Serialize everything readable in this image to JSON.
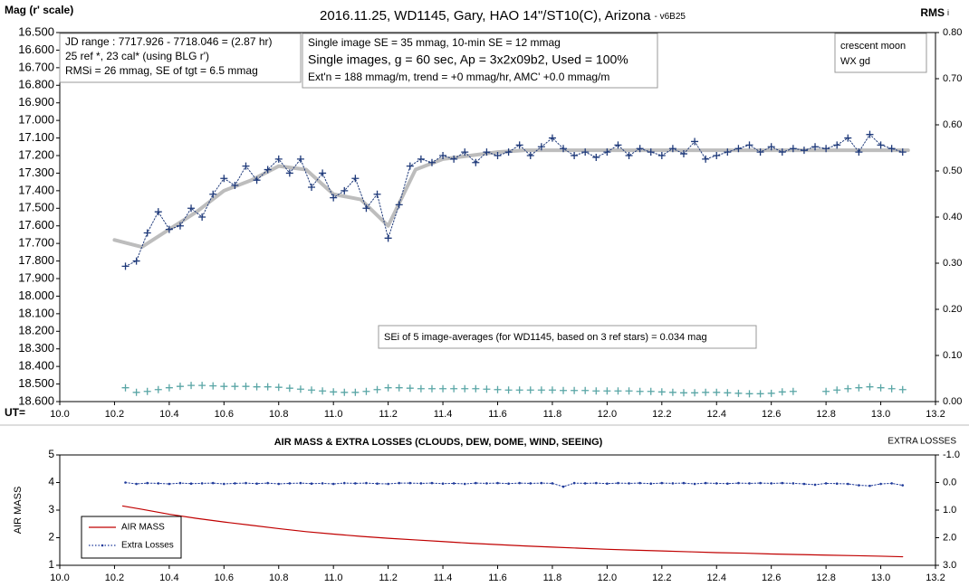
{
  "chart_data": [
    {
      "type": "line",
      "title": "2016.11.25,  WD1145, Gary, HAO  14\"/ST10(C), Arizona",
      "title_suffix": "- v6B25",
      "ylabel": "Mag (r' scale)",
      "y2label": "RMS",
      "y2label_suffix": "i",
      "xlabel": "UT=",
      "xlim": [
        10.0,
        13.2
      ],
      "xticks": [
        {
          "value": 10,
          "label": "10.0"
        },
        10.2,
        10.4,
        10.6,
        10.8,
        {
          "value": 11,
          "label": "11.0"
        },
        11.2,
        11.4,
        11.6,
        11.8,
        {
          "value": 12,
          "label": "12.0"
        },
        12.2,
        12.4,
        12.6,
        12.8,
        {
          "value": 13,
          "label": "13.0"
        },
        13.2
      ],
      "ylim": [
        18.6,
        16.5
      ],
      "yticks": [
        {
          "value": 16.5,
          "label": "16.500"
        },
        {
          "value": 16.6,
          "label": "16.600"
        },
        {
          "value": 16.7,
          "label": "16.700"
        },
        {
          "value": 16.8,
          "label": "16.800"
        },
        {
          "value": 16.9,
          "label": "16.900"
        },
        {
          "value": 17.0,
          "label": "17.000"
        },
        {
          "value": 17.1,
          "label": "17.100"
        },
        {
          "value": 17.2,
          "label": "17.200"
        },
        {
          "value": 17.3,
          "label": "17.300"
        },
        {
          "value": 17.4,
          "label": "17.400"
        },
        {
          "value": 17.5,
          "label": "17.500"
        },
        {
          "value": 17.6,
          "label": "17.600"
        },
        {
          "value": 17.7,
          "label": "17.700"
        },
        {
          "value": 17.8,
          "label": "17.800"
        },
        {
          "value": 17.9,
          "label": "17.900"
        },
        {
          "value": 18.0,
          "label": "18.000"
        },
        {
          "value": 18.1,
          "label": "18.100"
        },
        {
          "value": 18.2,
          "label": "18.200"
        },
        {
          "value": 18.3,
          "label": "18.300"
        },
        {
          "value": 18.4,
          "label": "18.400"
        },
        {
          "value": 18.5,
          "label": "18.500"
        },
        {
          "value": 18.6,
          "label": "18.600"
        }
      ],
      "y2lim": [
        0,
        0.8
      ],
      "y2ticks": [
        {
          "value": 0,
          "label": "0.00"
        },
        {
          "value": 0.1,
          "label": "0.10"
        },
        {
          "value": 0.2,
          "label": "0.20"
        },
        {
          "value": 0.3,
          "label": "0.30"
        },
        {
          "value": 0.4,
          "label": "0.40"
        },
        {
          "value": 0.5,
          "label": "0.50"
        },
        {
          "value": 0.6,
          "label": "0.60"
        },
        {
          "value": 0.7,
          "label": "0.70"
        },
        {
          "value": 0.8,
          "label": "0.80"
        }
      ],
      "grid": false,
      "annotations": [
        {
          "lines": [
            "JD range : 7717.926 - 7718.046  = (2.87 hr)",
            "25 ref *, 23 cal* (using BLG r')",
            "RMSi = 26 mmag, SE of tgt = 6.5 mmag"
          ]
        },
        {
          "lines": [
            "Single image SE = 35 mmag, 10-min SE = 12 mmag",
            "Single images, g = 60 sec, Ap = 3x2x09b2, Used = 100%",
            "Ext'n = 188  mmag/m, trend = +0 mmag/hr, AMC' +0.0 mmag/m"
          ]
        },
        {
          "lines": [
            "crescent moon",
            "WX gd"
          ]
        },
        {
          "lines": [
            "SEi of 5 image-averages (for WD1145, based on 3 ref stars) = 0.034 mag"
          ]
        }
      ],
      "series": [
        {
          "color": "#bdbdbd",
          "marker": "none",
          "line": "solid",
          "x": [
            10.2,
            10.3,
            10.4,
            10.5,
            10.6,
            10.7,
            10.8,
            10.9,
            11.0,
            11.1,
            11.2,
            11.3,
            11.4,
            11.5,
            11.6,
            11.7,
            11.8,
            11.9,
            12.0,
            12.1,
            12.2,
            12.3,
            12.4,
            12.5,
            12.6,
            12.7,
            12.8,
            12.9,
            13.0,
            13.1
          ],
          "values": [
            17.68,
            17.72,
            17.62,
            17.52,
            17.4,
            17.34,
            17.26,
            17.28,
            17.42,
            17.45,
            17.6,
            17.28,
            17.22,
            17.2,
            17.18,
            17.17,
            17.17,
            17.17,
            17.17,
            17.17,
            17.17,
            17.17,
            17.17,
            17.17,
            17.17,
            17.17,
            17.17,
            17.17,
            17.17,
            17.17
          ]
        },
        {
          "color": "#1f3a7a",
          "marker": "plus",
          "line": "dotted",
          "x": [
            10.24,
            10.28,
            10.32,
            10.36,
            10.4,
            10.44,
            10.48,
            10.52,
            10.56,
            10.6,
            10.64,
            10.68,
            10.72,
            10.76,
            10.8,
            10.84,
            10.88,
            10.92,
            10.96,
            11.0,
            11.04,
            11.08,
            11.12,
            11.16,
            11.2,
            11.24,
            11.28,
            11.32,
            11.36,
            11.4,
            11.44,
            11.48,
            11.52,
            11.56,
            11.6,
            11.64,
            11.68,
            11.72,
            11.76,
            11.8,
            11.84,
            11.88,
            11.92,
            11.96,
            12.0,
            12.04,
            12.08,
            12.12,
            12.16,
            12.2,
            12.24,
            12.28,
            12.32,
            12.36,
            12.4,
            12.44,
            12.48,
            12.52,
            12.56,
            12.6,
            12.64,
            12.68,
            12.72,
            12.76,
            12.8,
            12.84,
            12.88,
            12.92,
            12.96,
            13.0,
            13.04,
            13.08
          ],
          "values": [
            17.83,
            17.8,
            17.64,
            17.52,
            17.62,
            17.6,
            17.5,
            17.55,
            17.42,
            17.33,
            17.37,
            17.26,
            17.34,
            17.28,
            17.22,
            17.3,
            17.22,
            17.38,
            17.3,
            17.44,
            17.4,
            17.33,
            17.5,
            17.42,
            17.67,
            17.48,
            17.26,
            17.22,
            17.24,
            17.2,
            17.22,
            17.18,
            17.24,
            17.18,
            17.2,
            17.18,
            17.14,
            17.2,
            17.15,
            17.1,
            17.16,
            17.2,
            17.18,
            17.21,
            17.18,
            17.14,
            17.2,
            17.16,
            17.18,
            17.2,
            17.16,
            17.19,
            17.12,
            17.22,
            17.2,
            17.18,
            17.16,
            17.14,
            17.18,
            17.15,
            17.18,
            17.16,
            17.17,
            17.15,
            17.16,
            17.14,
            17.1,
            17.18,
            17.08,
            17.14,
            17.16,
            17.18
          ]
        },
        {
          "color": "#5aa6a6",
          "marker": "plus",
          "line": "none",
          "axis": "y2",
          "x": [
            10.24,
            10.28,
            10.32,
            10.36,
            10.4,
            10.44,
            10.48,
            10.52,
            10.56,
            10.6,
            10.64,
            10.68,
            10.72,
            10.76,
            10.8,
            10.84,
            10.88,
            10.92,
            10.96,
            11.0,
            11.04,
            11.08,
            11.12,
            11.16,
            11.2,
            11.24,
            11.28,
            11.32,
            11.36,
            11.4,
            11.44,
            11.48,
            11.52,
            11.56,
            11.6,
            11.64,
            11.68,
            11.72,
            11.76,
            11.8,
            11.84,
            11.88,
            11.92,
            11.96,
            12.0,
            12.04,
            12.08,
            12.12,
            12.16,
            12.2,
            12.24,
            12.28,
            12.32,
            12.36,
            12.4,
            12.44,
            12.48,
            12.52,
            12.56,
            12.6,
            12.64,
            12.68,
            12.72,
            12.76,
            12.8,
            12.84,
            12.88,
            12.92,
            12.96,
            13.0,
            13.04,
            13.08
          ],
          "values": [
            0.03,
            0.02,
            0.022,
            0.026,
            0.03,
            0.033,
            0.035,
            0.035,
            0.034,
            0.033,
            0.033,
            0.033,
            0.032,
            0.032,
            0.031,
            0.029,
            0.027,
            0.025,
            0.023,
            0.021,
            0.02,
            0.02,
            0.022,
            0.026,
            0.03,
            0.03,
            0.029,
            0.028,
            0.028,
            0.028,
            0.028,
            0.028,
            0.028,
            0.027,
            0.026,
            0.025,
            0.025,
            0.025,
            0.025,
            0.025,
            0.024,
            0.024,
            0.024,
            0.023,
            0.023,
            0.023,
            0.023,
            0.022,
            0.022,
            0.021,
            0.02,
            0.019,
            0.019,
            0.02,
            0.02,
            0.019,
            0.018,
            0.017,
            0.017,
            0.018,
            0.021,
            0.022,
            null,
            null,
            0.022,
            0.025,
            0.028,
            0.03,
            0.032,
            0.03,
            0.028,
            0.026
          ]
        }
      ]
    },
    {
      "type": "line",
      "title": "AIR MASS & EXTRA LOSSES (CLOUDS, DEW, DOME, WIND, SEEING)",
      "ylabel": "AIR MASS",
      "y2label": "EXTRA LOSSES",
      "xlim": [
        10.0,
        13.2
      ],
      "xticks": [
        {
          "value": 10,
          "label": "10.0"
        },
        10.2,
        10.4,
        10.6,
        10.8,
        {
          "value": 11,
          "label": "11.0"
        },
        11.2,
        11.4,
        11.6,
        11.8,
        {
          "value": 12,
          "label": "12.0"
        },
        12.2,
        12.4,
        12.6,
        12.8,
        {
          "value": 13,
          "label": "13.0"
        },
        13.2
      ],
      "ylim": [
        1,
        5
      ],
      "yticks": [
        1,
        2,
        3,
        4,
        5
      ],
      "y2lim": [
        3,
        -1
      ],
      "y2ticks": [
        {
          "value": -1,
          "label": "-1.0"
        },
        {
          "value": 0,
          "label": "0.0"
        },
        {
          "value": 1,
          "label": "1.0"
        },
        {
          "value": 2,
          "label": "2.0"
        },
        {
          "value": 3,
          "label": "3.0"
        }
      ],
      "grid": false,
      "legend": "lower left",
      "series": [
        {
          "name": "AIR MASS",
          "color": "#c00000",
          "marker": "none",
          "line": "solid",
          "x": [
            10.23,
            10.3,
            10.4,
            10.5,
            10.6,
            10.7,
            10.8,
            10.9,
            11.0,
            11.1,
            11.2,
            11.3,
            11.4,
            11.5,
            11.6,
            11.7,
            11.8,
            11.9,
            12.0,
            12.1,
            12.2,
            12.3,
            12.4,
            12.5,
            12.6,
            12.7,
            12.8,
            12.9,
            13.0,
            13.08
          ],
          "values": [
            3.15,
            3.03,
            2.85,
            2.7,
            2.57,
            2.45,
            2.33,
            2.22,
            2.13,
            2.05,
            1.98,
            1.92,
            1.86,
            1.8,
            1.75,
            1.7,
            1.66,
            1.62,
            1.58,
            1.55,
            1.52,
            1.49,
            1.46,
            1.44,
            1.41,
            1.39,
            1.37,
            1.35,
            1.33,
            1.31
          ]
        },
        {
          "name": "Extra Losses",
          "color": "#1f3a9a",
          "marker": "dot",
          "line": "dotted",
          "axis": "y2",
          "x": [
            10.24,
            10.28,
            10.32,
            10.36,
            10.4,
            10.44,
            10.48,
            10.52,
            10.56,
            10.6,
            10.64,
            10.68,
            10.72,
            10.76,
            10.8,
            10.84,
            10.88,
            10.92,
            10.96,
            11.0,
            11.04,
            11.08,
            11.12,
            11.16,
            11.2,
            11.24,
            11.28,
            11.32,
            11.36,
            11.4,
            11.44,
            11.48,
            11.52,
            11.56,
            11.6,
            11.64,
            11.68,
            11.72,
            11.76,
            11.8,
            11.84,
            11.88,
            11.92,
            11.96,
            12.0,
            12.04,
            12.08,
            12.12,
            12.16,
            12.2,
            12.24,
            12.28,
            12.32,
            12.36,
            12.4,
            12.44,
            12.48,
            12.52,
            12.56,
            12.6,
            12.64,
            12.68,
            12.72,
            12.76,
            12.8,
            12.84,
            12.88,
            12.92,
            12.96,
            13.0,
            13.04,
            13.08
          ],
          "values": [
            0.0,
            0.05,
            0.02,
            0.03,
            0.05,
            0.02,
            0.04,
            0.03,
            0.02,
            0.05,
            0.03,
            0.02,
            0.04,
            0.02,
            0.05,
            0.03,
            0.02,
            0.04,
            0.03,
            0.05,
            0.02,
            0.03,
            0.02,
            0.04,
            0.05,
            0.02,
            0.02,
            0.03,
            0.02,
            0.04,
            0.03,
            0.05,
            0.02,
            0.03,
            0.02,
            0.04,
            0.02,
            0.03,
            0.02,
            0.03,
            0.15,
            0.02,
            0.03,
            0.02,
            0.04,
            0.02,
            0.03,
            0.02,
            0.04,
            0.02,
            0.03,
            0.02,
            0.05,
            0.02,
            0.03,
            0.04,
            0.02,
            0.03,
            0.02,
            0.03,
            0.02,
            0.03,
            0.05,
            0.08,
            0.03,
            0.04,
            0.05,
            0.1,
            0.12,
            0.05,
            0.03,
            0.1
          ]
        }
      ]
    }
  ]
}
